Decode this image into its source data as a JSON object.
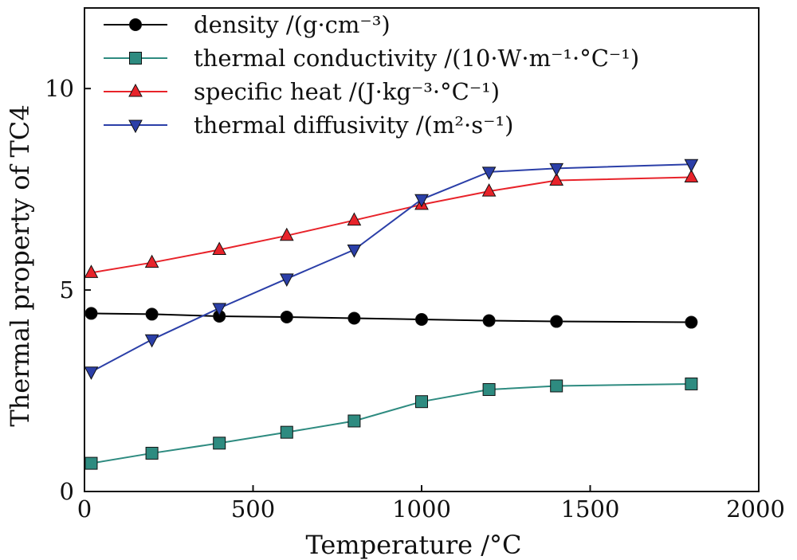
{
  "chart_data": {
    "type": "line",
    "title": "",
    "xlabel": "Temperature /°C",
    "ylabel": "Thermal property of TC4",
    "xlim": [
      0,
      2000
    ],
    "ylim": [
      0,
      12
    ],
    "xticks": [
      0,
      500,
      1000,
      1500,
      2000
    ],
    "yticks": [
      0,
      5,
      10
    ],
    "legend_position": "top-left",
    "grid": false,
    "series": [
      {
        "name": "density /(g·cm⁻³)",
        "marker": "circle",
        "color": "#000000",
        "x": [
          20,
          200,
          400,
          600,
          800,
          1000,
          1200,
          1400,
          1800
        ],
        "y": [
          4.42,
          4.4,
          4.35,
          4.33,
          4.3,
          4.27,
          4.24,
          4.22,
          4.2
        ]
      },
      {
        "name": "thermal conductivity /(10·W·m⁻¹·°C⁻¹)",
        "marker": "square",
        "color": "#2e8b80",
        "x": [
          20,
          200,
          400,
          600,
          800,
          1000,
          1200,
          1400,
          1800
        ],
        "y": [
          0.7,
          0.95,
          1.2,
          1.47,
          1.75,
          2.23,
          2.53,
          2.62,
          2.67
        ]
      },
      {
        "name": "specific heat /(J·kg⁻³·°C⁻¹)",
        "marker": "triangle-up",
        "color": "#e8232a",
        "x": [
          20,
          200,
          400,
          600,
          800,
          1000,
          1200,
          1400,
          1800
        ],
        "y": [
          5.43,
          5.68,
          6.0,
          6.35,
          6.73,
          7.12,
          7.45,
          7.72,
          7.8
        ]
      },
      {
        "name": "thermal diffusivity /(m²·s⁻¹)",
        "marker": "triangle-down",
        "color": "#2b3fa8",
        "x": [
          20,
          200,
          400,
          600,
          800,
          1000,
          1200,
          1400,
          1800
        ],
        "y": [
          2.97,
          3.77,
          4.55,
          5.28,
          6.0,
          7.25,
          7.93,
          8.02,
          8.12
        ]
      }
    ]
  }
}
